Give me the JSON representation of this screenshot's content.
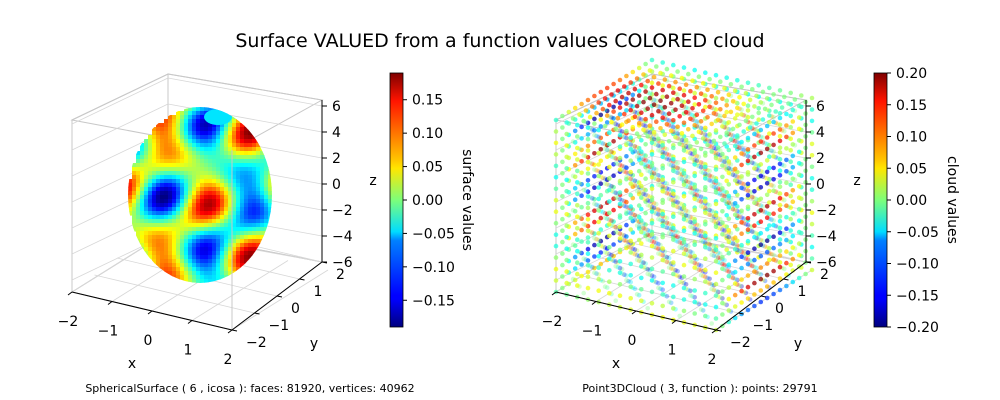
{
  "figure_title": "Surface VALUED from a function values COLORED cloud",
  "colormap": "jet",
  "chart_data": [
    {
      "type": "surface",
      "caption": "SphericalSurface ( 6 , icosa ):  faces: 81920,  vertices: 40962",
      "xlabel": "x",
      "ylabel": "y",
      "zlabel": "z",
      "xlim": [
        -2,
        2
      ],
      "ylim": [
        -2,
        2
      ],
      "zlim": [
        -6,
        6
      ],
      "xticks": [
        "−2",
        "−1",
        "0",
        "1",
        "2"
      ],
      "yticks": [
        "−2",
        "−1",
        "0",
        "1",
        "2"
      ],
      "zticks": [
        "−6",
        "−4",
        "−2",
        "0",
        "2",
        "4",
        "6"
      ],
      "colorbar": {
        "label": "surface values",
        "range": [
          -0.19,
          0.19
        ],
        "ticks": [
          "−0.15",
          "−0.10",
          "−0.05",
          "0.00",
          "0.05",
          "0.10",
          "0.15"
        ],
        "tick_values": [
          -0.15,
          -0.1,
          -0.05,
          0.0,
          0.05,
          0.1,
          0.15
        ]
      }
    },
    {
      "type": "scatter3d",
      "caption": "Point3DCloud ( 3, function ):  points: 29791",
      "xlabel": "x",
      "ylabel": "y",
      "zlabel": "z",
      "xlim": [
        -2,
        2
      ],
      "ylim": [
        -2,
        2
      ],
      "zlim": [
        -6,
        6
      ],
      "xticks": [
        "−2",
        "−1",
        "0",
        "1",
        "2"
      ],
      "yticks": [
        "−2",
        "−1",
        "0",
        "1",
        "2"
      ],
      "zticks": [
        "−6",
        "−4",
        "−2",
        "0",
        "2",
        "4",
        "6"
      ],
      "colorbar": {
        "label": "cloud values",
        "range": [
          -0.2,
          0.2
        ],
        "ticks": [
          "−0.20",
          "−0.15",
          "−0.10",
          "−0.05",
          "0.00",
          "0.05",
          "0.10",
          "0.15",
          "0.20"
        ],
        "tick_values": [
          -0.2,
          -0.15,
          -0.1,
          -0.05,
          0.0,
          0.05,
          0.1,
          0.15,
          0.2
        ]
      }
    }
  ]
}
